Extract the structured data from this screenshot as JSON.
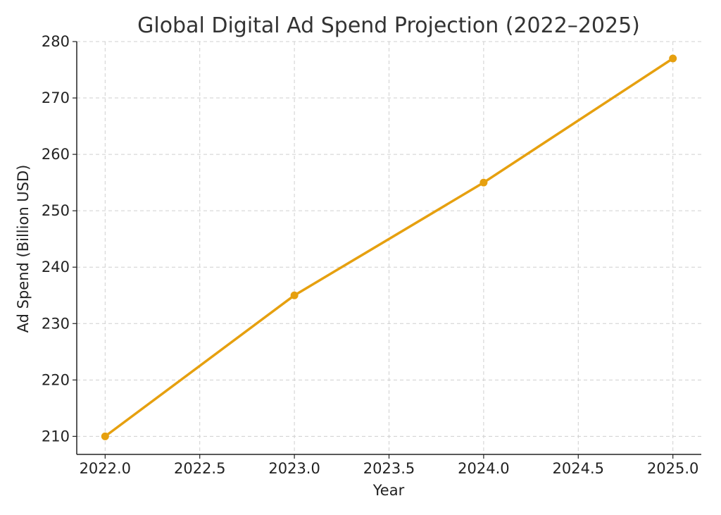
{
  "chart_data": {
    "type": "line",
    "title": "Global Digital Ad Spend Projection (2022–2025)",
    "xlabel": "Year",
    "ylabel": "Ad Spend (Billion USD)",
    "x": [
      2022,
      2023,
      2024,
      2025
    ],
    "series": [
      {
        "values": [
          210,
          235,
          255,
          277
        ],
        "color": "#E6A00F",
        "marker": "circle"
      }
    ],
    "xlim": [
      2021.85,
      2025.15
    ],
    "ylim": [
      206.8,
      280
    ],
    "xticks": [
      2022.0,
      2022.5,
      2023.0,
      2023.5,
      2024.0,
      2024.5,
      2025.0
    ],
    "xtick_labels": [
      "2022.0",
      "2022.5",
      "2023.0",
      "2023.5",
      "2024.0",
      "2024.5",
      "2025.0"
    ],
    "yticks": [
      210,
      220,
      230,
      240,
      250,
      260,
      270,
      280
    ],
    "ytick_labels": [
      "210",
      "220",
      "230",
      "240",
      "250",
      "260",
      "270",
      "280"
    ],
    "grid": true,
    "legend": "none"
  }
}
